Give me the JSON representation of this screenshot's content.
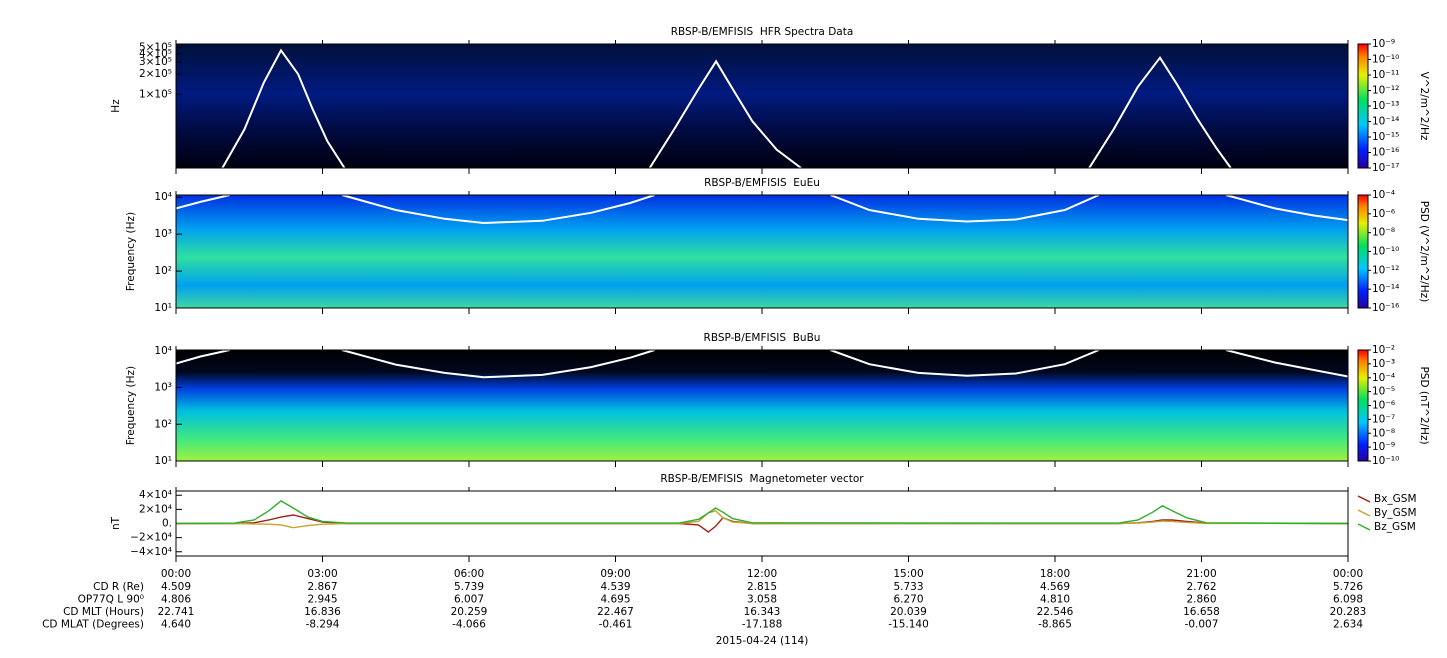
{
  "chart_data": [
    {
      "type": "spectrogram",
      "title": "RBSP-B/EMFISIS  HFR Spectra Data",
      "ylabel": "Hz",
      "ylog": true,
      "xlim": [
        0,
        24
      ],
      "ylim": [
        8000,
        560000
      ],
      "yticks": [
        {
          "value": 500000,
          "label": "5×10⁵"
        },
        {
          "value": 400000,
          "label": "4×10⁵"
        },
        {
          "value": 300000,
          "label": "3×10⁵"
        },
        {
          "value": 200000,
          "label": "2×10⁵"
        },
        {
          "value": 100000,
          "label": "1×10⁵"
        }
      ],
      "x": [
        0.95,
        1.4,
        1.8,
        2.15,
        2.5,
        2.8,
        3.1,
        3.45,
        6,
        9.7,
        10.2,
        10.7,
        11.06,
        11.4,
        11.8,
        12.3,
        12.8,
        15,
        18.7,
        19.2,
        19.7,
        20.15,
        20.5,
        20.9,
        21.3,
        21.6
      ],
      "series": [
        {
          "color": "#ffffff",
          "values": [
            8000,
            30000,
            150000,
            450000,
            200000,
            60000,
            20000,
            8000,
            null,
            8000,
            30000,
            120000,
            310000,
            120000,
            40000,
            15000,
            8000,
            null,
            8000,
            30000,
            130000,
            350000,
            140000,
            45000,
            16000,
            8000
          ]
        }
      ],
      "colorbar": {
        "label": "V^2/m^2/Hz",
        "zlim": [
          1e-17,
          1e-09
        ],
        "ticks": [
          {
            "value": 1e-09,
            "label": "10⁻⁹"
          },
          {
            "value": 1e-10,
            "label": "10⁻¹⁰"
          },
          {
            "value": 1e-11,
            "label": "10⁻¹¹"
          },
          {
            "value": 1e-12,
            "label": "10⁻¹²"
          },
          {
            "value": 1e-13,
            "label": "10⁻¹³"
          },
          {
            "value": 1e-14,
            "label": "10⁻¹⁴"
          },
          {
            "value": 1e-15,
            "label": "10⁻¹⁵"
          },
          {
            "value": 1e-16,
            "label": "10⁻¹⁶"
          },
          {
            "value": 1e-17,
            "label": "10⁻¹⁷"
          }
        ]
      }
    },
    {
      "type": "spectrogram",
      "title": "RBSP-B/EMFISIS  EuEu",
      "ylabel": "Frequency (Hz)",
      "ylog": true,
      "xlim": [
        0,
        24
      ],
      "ylim": [
        10,
        11500
      ],
      "yticks": [
        {
          "value": 10000,
          "label": "10⁴"
        },
        {
          "value": 1000,
          "label": "10³"
        },
        {
          "value": 100,
          "label": "10²"
        },
        {
          "value": 10,
          "label": "10¹"
        }
      ],
      "x": [
        0,
        0.5,
        1.1,
        2,
        3.4,
        4.5,
        5.5,
        6.3,
        7.5,
        8.5,
        9.3,
        9.8,
        11,
        13.4,
        14.2,
        15.2,
        16.2,
        17.2,
        18.2,
        18.9,
        20,
        21.5,
        22.5,
        23.3,
        24
      ],
      "series": [
        {
          "color": "#ffffff",
          "values": [
            5000,
            7500,
            11500,
            null,
            11500,
            4500,
            2600,
            2000,
            2300,
            3800,
            7000,
            11500,
            null,
            11500,
            4500,
            2600,
            2200,
            2500,
            4500,
            11500,
            null,
            11500,
            5000,
            3200,
            2400
          ]
        }
      ],
      "colorbar": {
        "label": "PSD (V^2/m^2/Hz)",
        "zlim": [
          1e-16,
          0.0001
        ],
        "ticks": [
          {
            "value": 0.0001,
            "label": "10⁻⁴"
          },
          {
            "value": 1e-06,
            "label": "10⁻⁶"
          },
          {
            "value": 1e-08,
            "label": "10⁻⁸"
          },
          {
            "value": 1e-10,
            "label": "10⁻¹⁰"
          },
          {
            "value": 1e-12,
            "label": "10⁻¹²"
          },
          {
            "value": 1e-14,
            "label": "10⁻¹⁴"
          },
          {
            "value": 1e-16,
            "label": "10⁻¹⁶"
          }
        ]
      }
    },
    {
      "type": "spectrogram",
      "title": "RBSP-B/EMFISIS  BuBu",
      "ylabel": "Frequency (Hz)",
      "ylog": true,
      "xlim": [
        0,
        24
      ],
      "ylim": [
        10,
        10500
      ],
      "yticks": [
        {
          "value": 10000,
          "label": "10⁴"
        },
        {
          "value": 1000,
          "label": "10³"
        },
        {
          "value": 100,
          "label": "10²"
        },
        {
          "value": 10,
          "label": "10¹"
        }
      ],
      "x": [
        0,
        0.5,
        1.1,
        2,
        3.4,
        4.5,
        5.5,
        6.3,
        7.5,
        8.5,
        9.3,
        9.8,
        11,
        13.4,
        14.2,
        15.2,
        16.2,
        17.2,
        18.2,
        18.9,
        20,
        21.5,
        22.5,
        23.3,
        24
      ],
      "series": [
        {
          "color": "#ffffff",
          "values": [
            4500,
            7000,
            10500,
            null,
            10500,
            4200,
            2500,
            1900,
            2200,
            3600,
            6500,
            10500,
            null,
            10500,
            4300,
            2500,
            2100,
            2400,
            4300,
            10500,
            null,
            10500,
            4800,
            3000,
            2000
          ]
        }
      ],
      "colorbar": {
        "label": "PSD (nT^2/Hz)",
        "zlim": [
          1e-10,
          0.01
        ],
        "ticks": [
          {
            "value": 0.01,
            "label": "10⁻²"
          },
          {
            "value": 0.001,
            "label": "10⁻³"
          },
          {
            "value": 0.0001,
            "label": "10⁻⁴"
          },
          {
            "value": 1e-05,
            "label": "10⁻⁵"
          },
          {
            "value": 1e-06,
            "label": "10⁻⁶"
          },
          {
            "value": 1e-07,
            "label": "10⁻⁷"
          },
          {
            "value": 1e-08,
            "label": "10⁻⁸"
          },
          {
            "value": 1e-09,
            "label": "10⁻⁹"
          },
          {
            "value": 1e-10,
            "label": "10⁻¹⁰"
          }
        ]
      }
    },
    {
      "type": "line",
      "title": "RBSP-B/EMFISIS  Magnetometer vector",
      "ylabel": "nT",
      "xlim": [
        0,
        24
      ],
      "ylim": [
        -46000,
        46000
      ],
      "xticks": [
        {
          "value": 0,
          "label": "00:00"
        },
        {
          "value": 3,
          "label": "03:00"
        },
        {
          "value": 6,
          "label": "06:00"
        },
        {
          "value": 9,
          "label": "09:00"
        },
        {
          "value": 12,
          "label": "12:00"
        },
        {
          "value": 15,
          "label": "15:00"
        },
        {
          "value": 18,
          "label": "18:00"
        },
        {
          "value": 21,
          "label": "21:00"
        },
        {
          "value": 24,
          "label": "00:00"
        }
      ],
      "yticks": [
        {
          "value": 40000,
          "label": "4×10⁴"
        },
        {
          "value": 20000,
          "label": "2×10⁴"
        },
        {
          "value": 0,
          "label": "0."
        },
        {
          "value": -20000,
          "label": "−2×10⁴"
        },
        {
          "value": -40000,
          "label": "−4×10⁴"
        }
      ],
      "x": [
        0,
        1.2,
        1.6,
        1.9,
        2.15,
        2.4,
        2.7,
        3.0,
        3.5,
        10.3,
        10.7,
        10.9,
        11.05,
        11.2,
        11.4,
        11.8,
        19.3,
        19.7,
        20.0,
        20.2,
        20.4,
        20.7,
        21.1,
        24
      ],
      "series": [
        {
          "name": "Bx_GSM",
          "color": "#a0201c",
          "values": [
            0,
            0,
            1000,
            5000,
            9000,
            12000,
            7000,
            2000,
            0,
            0,
            -2000,
            -12000,
            -4000,
            8000,
            3000,
            0,
            0,
            1000,
            3000,
            5000,
            5000,
            3000,
            500,
            0
          ]
        },
        {
          "name": "By_GSM",
          "color": "#c9a22e",
          "values": [
            0,
            0,
            -500,
            -1000,
            -2000,
            -6000,
            -3000,
            -1000,
            0,
            0,
            3000,
            15000,
            18000,
            8000,
            2000,
            0,
            0,
            500,
            2000,
            3500,
            3000,
            1500,
            200,
            0
          ]
        },
        {
          "name": "Bz_GSM",
          "color": "#2eae2e",
          "values": [
            0,
            500,
            5000,
            18000,
            32000,
            22000,
            9000,
            3000,
            500,
            500,
            6000,
            15000,
            22000,
            16000,
            7000,
            1000,
            500,
            5000,
            16000,
            25000,
            18000,
            8000,
            1000,
            0
          ]
        }
      ]
    }
  ],
  "ephemeris": {
    "rows": [
      {
        "label": "CD R (Re)",
        "values": [
          "4.509",
          "2.867",
          "5.739",
          "4.539",
          "2.815",
          "5.733",
          "4.569",
          "2.762",
          "5.726"
        ]
      },
      {
        "label": "OP77Q L 90⁰",
        "values": [
          "4.806",
          "2.945",
          "6.007",
          "4.695",
          "3.058",
          "6.270",
          "4.810",
          "2.860",
          "6.098"
        ]
      },
      {
        "label": "CD MLT (Hours)",
        "values": [
          "22.741",
          "16.836",
          "20.259",
          "22.467",
          "16.343",
          "20.039",
          "22.546",
          "16.658",
          "20.283"
        ]
      },
      {
        "label": "CD MLAT (Degrees)",
        "values": [
          "4.640",
          "-8.294",
          "-4.066",
          "-0.461",
          "-17.188",
          "-15.140",
          "-8.865",
          "-0.007",
          "2.634"
        ]
      }
    ],
    "date": "2015-04-24 (114)"
  }
}
